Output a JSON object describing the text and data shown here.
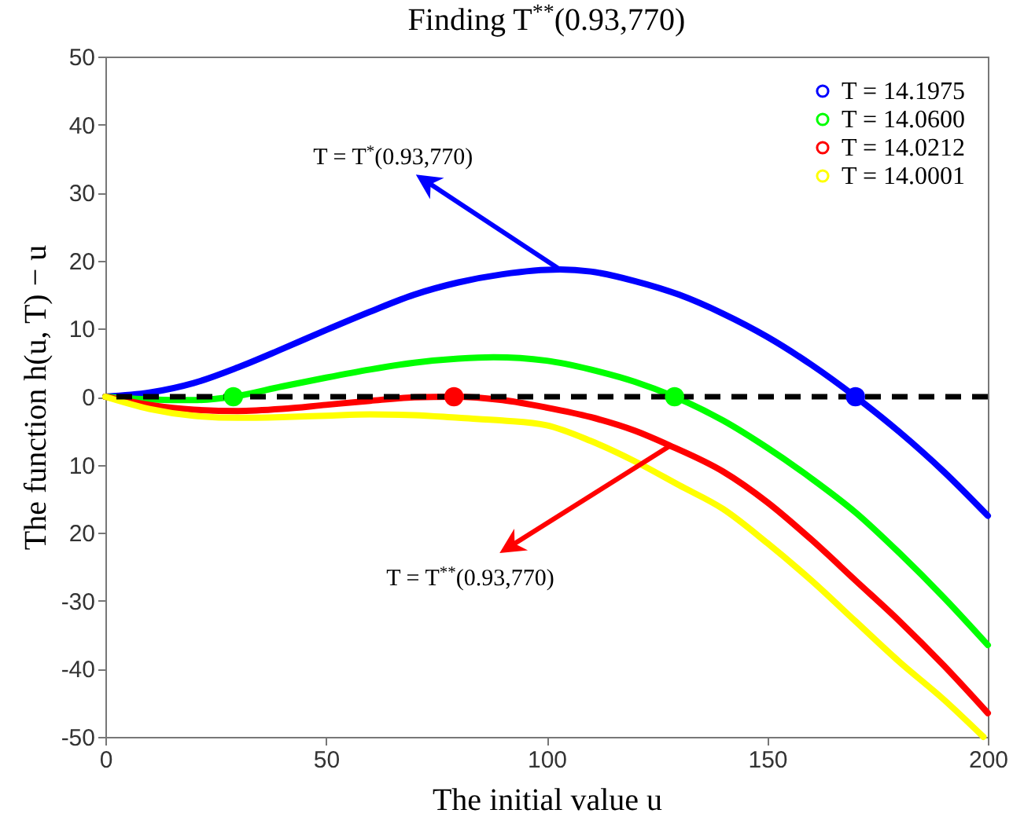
{
  "chart_data": {
    "type": "line",
    "title": "Finding T$^{**}$(0.93,770)",
    "xlabel": "The initial value u",
    "ylabel": "The function h(u, T) − u",
    "xlim": [
      0,
      200
    ],
    "xticks": [
      0,
      50,
      100,
      150,
      200
    ],
    "ylim": [
      -50,
      50
    ],
    "yticks": [
      -50,
      -40,
      -30,
      {
        "value": -20,
        "label": "20"
      },
      {
        "value": -10,
        "label": "10"
      },
      0,
      10,
      20,
      30,
      40,
      50
    ],
    "grid": false,
    "legend": "top right",
    "marker": "none",
    "series": [
      {
        "name": "T = 14.1975",
        "color": "#0000ff",
        "x": [
          0,
          10,
          20,
          30,
          40,
          50,
          60,
          70,
          80,
          90,
          103,
          110,
          120,
          130,
          140,
          150,
          160,
          170,
          180,
          190,
          200
        ],
        "values": [
          0,
          0.6,
          2,
          4.3,
          7,
          9.8,
          12.5,
          15,
          16.8,
          18,
          18.7,
          18.4,
          17,
          15,
          12.2,
          8.8,
          4.7,
          0,
          -5.2,
          -11,
          -17.5
        ]
      },
      {
        "name": "T = 14.0600",
        "color": "#00ff00",
        "x": [
          0,
          10,
          20,
          29,
          40,
          50,
          60,
          70,
          80,
          88,
          100,
          110,
          120,
          129,
          140,
          150,
          160,
          170,
          180,
          190,
          200
        ],
        "values": [
          0,
          -0.4,
          -0.5,
          0,
          1.5,
          2.8,
          4,
          5,
          5.6,
          5.8,
          5.3,
          4,
          2.2,
          0,
          -3.5,
          -7.5,
          -12,
          -17,
          -23,
          -29.5,
          -36.5
        ]
      },
      {
        "name": "T = 14.0212",
        "color": "#ff0000",
        "x": [
          0,
          10,
          20,
          30,
          40,
          50,
          60,
          70,
          79,
          90,
          100,
          110,
          120,
          128,
          140,
          150,
          160,
          170,
          180,
          190,
          200
        ],
        "values": [
          0,
          -1.2,
          -1.9,
          -2.1,
          -1.8,
          -1.2,
          -0.6,
          -0.1,
          0,
          -0.5,
          -1.6,
          -3,
          -5,
          -7.2,
          -11,
          -15.5,
          -21,
          -27,
          -33,
          -39.5,
          -46.5
        ]
      },
      {
        "name": "T = 14.0001",
        "color": "#ffff00",
        "x": [
          0,
          10,
          20,
          30,
          40,
          50,
          60,
          70,
          80,
          90,
          100,
          110,
          120,
          130,
          140,
          150,
          160,
          170,
          180,
          190,
          199
        ],
        "values": [
          0,
          -1.8,
          -2.8,
          -3.1,
          -3,
          -2.8,
          -2.6,
          -2.7,
          -3.1,
          -3.5,
          -4.2,
          -6.5,
          -9.5,
          -13,
          -16.5,
          -21.5,
          -27,
          -33,
          -39,
          -44.5,
          -50
        ]
      },
      {
        "type": "scatter",
        "marker": "circle",
        "color": "#0000ff",
        "x": [
          170
        ],
        "values": [
          0
        ]
      },
      {
        "type": "scatter",
        "marker": "circle",
        "color": "#00ff00",
        "x": [
          29,
          129
        ],
        "values": [
          0,
          0
        ]
      },
      {
        "type": "scatter",
        "marker": "circle",
        "color": "#ff0000",
        "x": [
          79
        ],
        "values": [
          0
        ]
      }
    ],
    "ref_lines": [
      {
        "axis": "y",
        "value": 0,
        "color": "#000000",
        "line_style": "dashed"
      }
    ],
    "annotations": [
      {
        "text": "T = T$^{*}$(0.93,770)",
        "x": 103,
        "y": 18.7
      },
      {
        "text": "T = T$^{**}$(0.93,770)",
        "x": 128,
        "y": -7.2
      }
    ]
  }
}
